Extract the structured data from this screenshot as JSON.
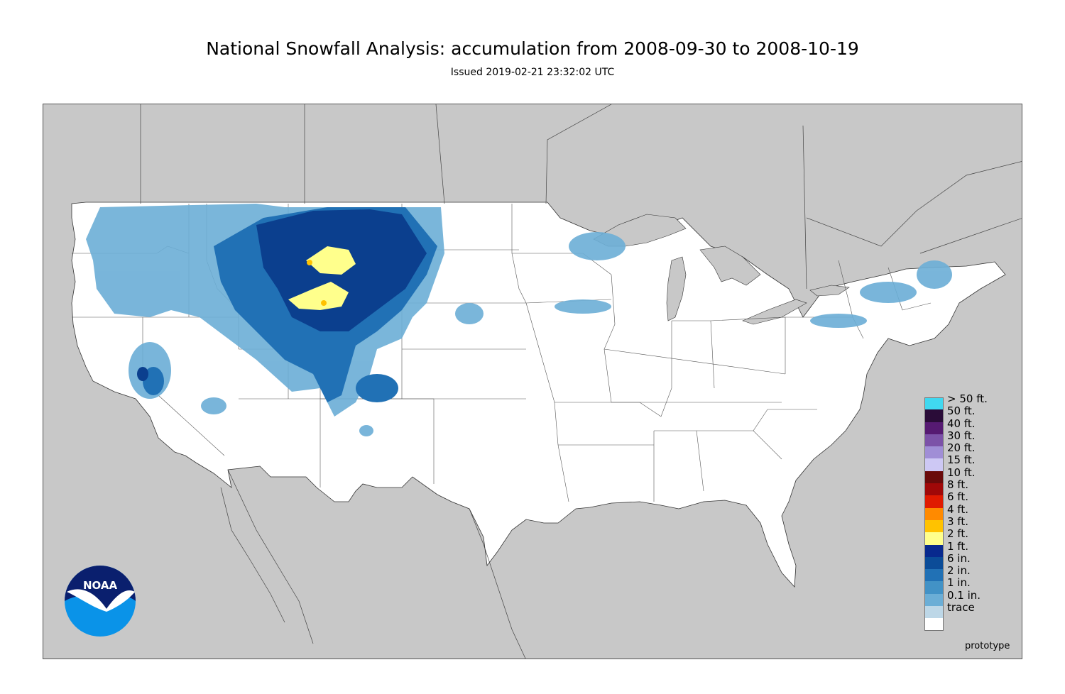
{
  "title": "National Snowfall Analysis: accumulation from 2008-09-30 to 2008-10-19",
  "subtitle": "Issued 2019-02-21 23:32:02 UTC",
  "map": {
    "background_color": "#c8c8c8",
    "land_color": "#ffffff",
    "border_color": "#444444"
  },
  "legend": [
    {
      "label": "> 50 ft.",
      "color": "#40d8f0"
    },
    {
      "label": "50 ft.",
      "color": "#2a0c38"
    },
    {
      "label": "40 ft.",
      "color": "#561a72"
    },
    {
      "label": "30 ft.",
      "color": "#7c52a8"
    },
    {
      "label": "20 ft.",
      "color": "#a08ed6"
    },
    {
      "label": "15 ft.",
      "color": "#cdc8f4"
    },
    {
      "label": "10 ft.",
      "color": "#6a0a0a"
    },
    {
      "label": "8 ft.",
      "color": "#a00808"
    },
    {
      "label": "6 ft.",
      "color": "#e01a00"
    },
    {
      "label": "4 ft.",
      "color": "#ff8a00"
    },
    {
      "label": "3 ft.",
      "color": "#ffc200"
    },
    {
      "label": "2 ft.",
      "color": "#ffff8c"
    },
    {
      "label": "1 ft.",
      "color": "#08298e"
    },
    {
      "label": "6 in.",
      "color": "#0b4c98"
    },
    {
      "label": "2 in.",
      "color": "#2171b5"
    },
    {
      "label": "1 in.",
      "color": "#4292c6"
    },
    {
      "label": "0.1 in.",
      "color": "#6baed6"
    },
    {
      "label": "trace",
      "color": "#bdd7e7"
    },
    {
      "label": "",
      "color": "#ffffff"
    }
  ],
  "watermark": "prototype",
  "logo": {
    "text": "NOAA",
    "icon": "noaa-logo"
  }
}
